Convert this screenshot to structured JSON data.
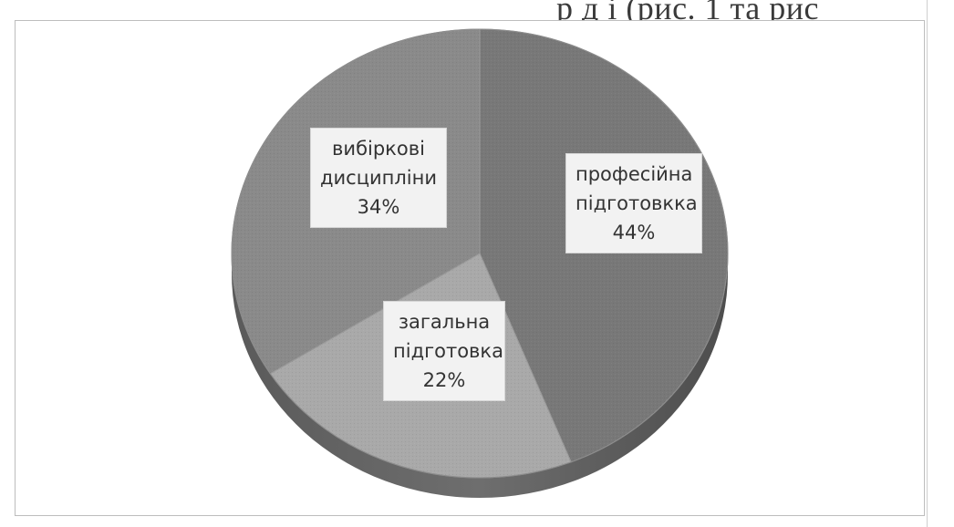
{
  "header_fragment": "р д           і (рис. 1 та рис",
  "chart_data": {
    "type": "pie",
    "categories": [
      "професійна підготовкка",
      "загальна підготовка",
      "вибіркові дисципліни"
    ],
    "values": [
      44,
      22,
      34
    ],
    "data_labels": [
      {
        "line1": "професійна",
        "line2": "підготовкка",
        "pct": "44%"
      },
      {
        "line1": "загальна",
        "line2": "підготовка",
        "pct": "22%"
      },
      {
        "line1": "вибіркові",
        "line2": "дисципліни",
        "pct": "34%"
      }
    ],
    "colors": [
      "#787878",
      "#a9a9a9",
      "#8a8a8a"
    ],
    "style": "3d-pie-grayscale",
    "legend": "none"
  }
}
